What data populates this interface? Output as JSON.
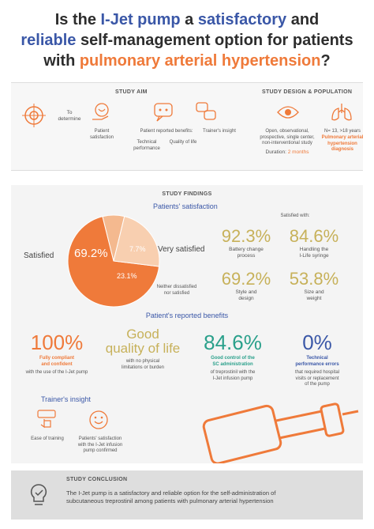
{
  "title": {
    "l1_a": "Is the ",
    "l1_b": "I-Jet pump",
    "l1_c": " a ",
    "l1_d": "satisfactory",
    "l1_e": " and",
    "l2_a": "reliable",
    "l2_b": " self-management option for patients",
    "l3_a": "with ",
    "l3_b": "pulmonary arterial hypertension",
    "l3_c": "?"
  },
  "aim": {
    "heading": "STUDY AIM",
    "to_determine": "To\ndetermine",
    "items": [
      {
        "label": "Patient\nsatisfaction"
      },
      {
        "label": "Patient reported benefits:"
      },
      {
        "label": "Technical\nperformance"
      },
      {
        "label": "Quality of life"
      },
      {
        "label": "Trainer's insight"
      }
    ]
  },
  "design": {
    "heading": "STUDY DESIGN & POPULATION",
    "study_type": "Open, observational,\nprospective, single center,\nnon-interventional study",
    "duration_label": "Duration:",
    "duration_value": "2 months",
    "population": "N= 13, >18 years",
    "diagnosis": "Pulmonary arterial\nhypertension\ndiagnosis"
  },
  "findings": {
    "heading": "STUDY FINDINGS",
    "satisfaction_title": "Patients' satisfaction",
    "pie": {
      "satisfied_label": "Satisfied",
      "satisfied_value": "69.2%",
      "very_label": "Very satisfied",
      "very_value": "7.7%",
      "neither_value": "23.1%",
      "neither_label": "Neither dissatisfied\nnor satisfied"
    },
    "satisfied_with": "Satisfied with:",
    "stats": [
      {
        "value": "92.3%",
        "label": "Battery change\nprocess"
      },
      {
        "value": "84.6%",
        "label": "Handling the\nI-Life syringe"
      },
      {
        "value": "69.2%",
        "label": "Style and\ndesign"
      },
      {
        "value": "53.8%",
        "label": "Size and\nweight"
      }
    ],
    "benefits_title": "Patient's reported benefits",
    "benefits": [
      {
        "value": "100%",
        "hl": "Fully compliant\nand confident",
        "label": "with the use of the I-Jet pump"
      },
      {
        "value": "Good\nquality of life",
        "hl": "",
        "label": "with no physical\nlimitations or burden"
      },
      {
        "value": "84.6%",
        "hl": "Good control of the\nSC administration",
        "label": "of treprostinil with the\nI-Jet infusion pump"
      },
      {
        "value": "0%",
        "hl": "Technical\nperformance errors",
        "label": "that required hospital\nvisits or replacement\nof the pump"
      }
    ],
    "trainer_title": "Trainer's insight",
    "trainer_items": [
      {
        "label": "Ease of training"
      },
      {
        "label": "Patients' satisfaction\nwith the I-Jet infusion\npump confirmed"
      }
    ]
  },
  "conclusion": {
    "heading": "STUDY CONCLUSION",
    "text_l1": "The I-Jet pump is a satisfactory and reliable option for the self-administration of",
    "text_l2": "subcutaneous treprostinil among patients with pulmonary arterial hypertension"
  },
  "colors": {
    "orange": "#ef7a3a",
    "blue": "#3a57a7",
    "teal": "#2aa08b",
    "olive": "#c7b15a",
    "peach": "#f4b98f"
  },
  "icons": [
    "target-icon",
    "hand-heart-icon",
    "chat-thumbs-icon",
    "eye-icon",
    "lungs-icon",
    "syringe-icon",
    "hand-tap-icon",
    "lightbulb-icon"
  ]
}
